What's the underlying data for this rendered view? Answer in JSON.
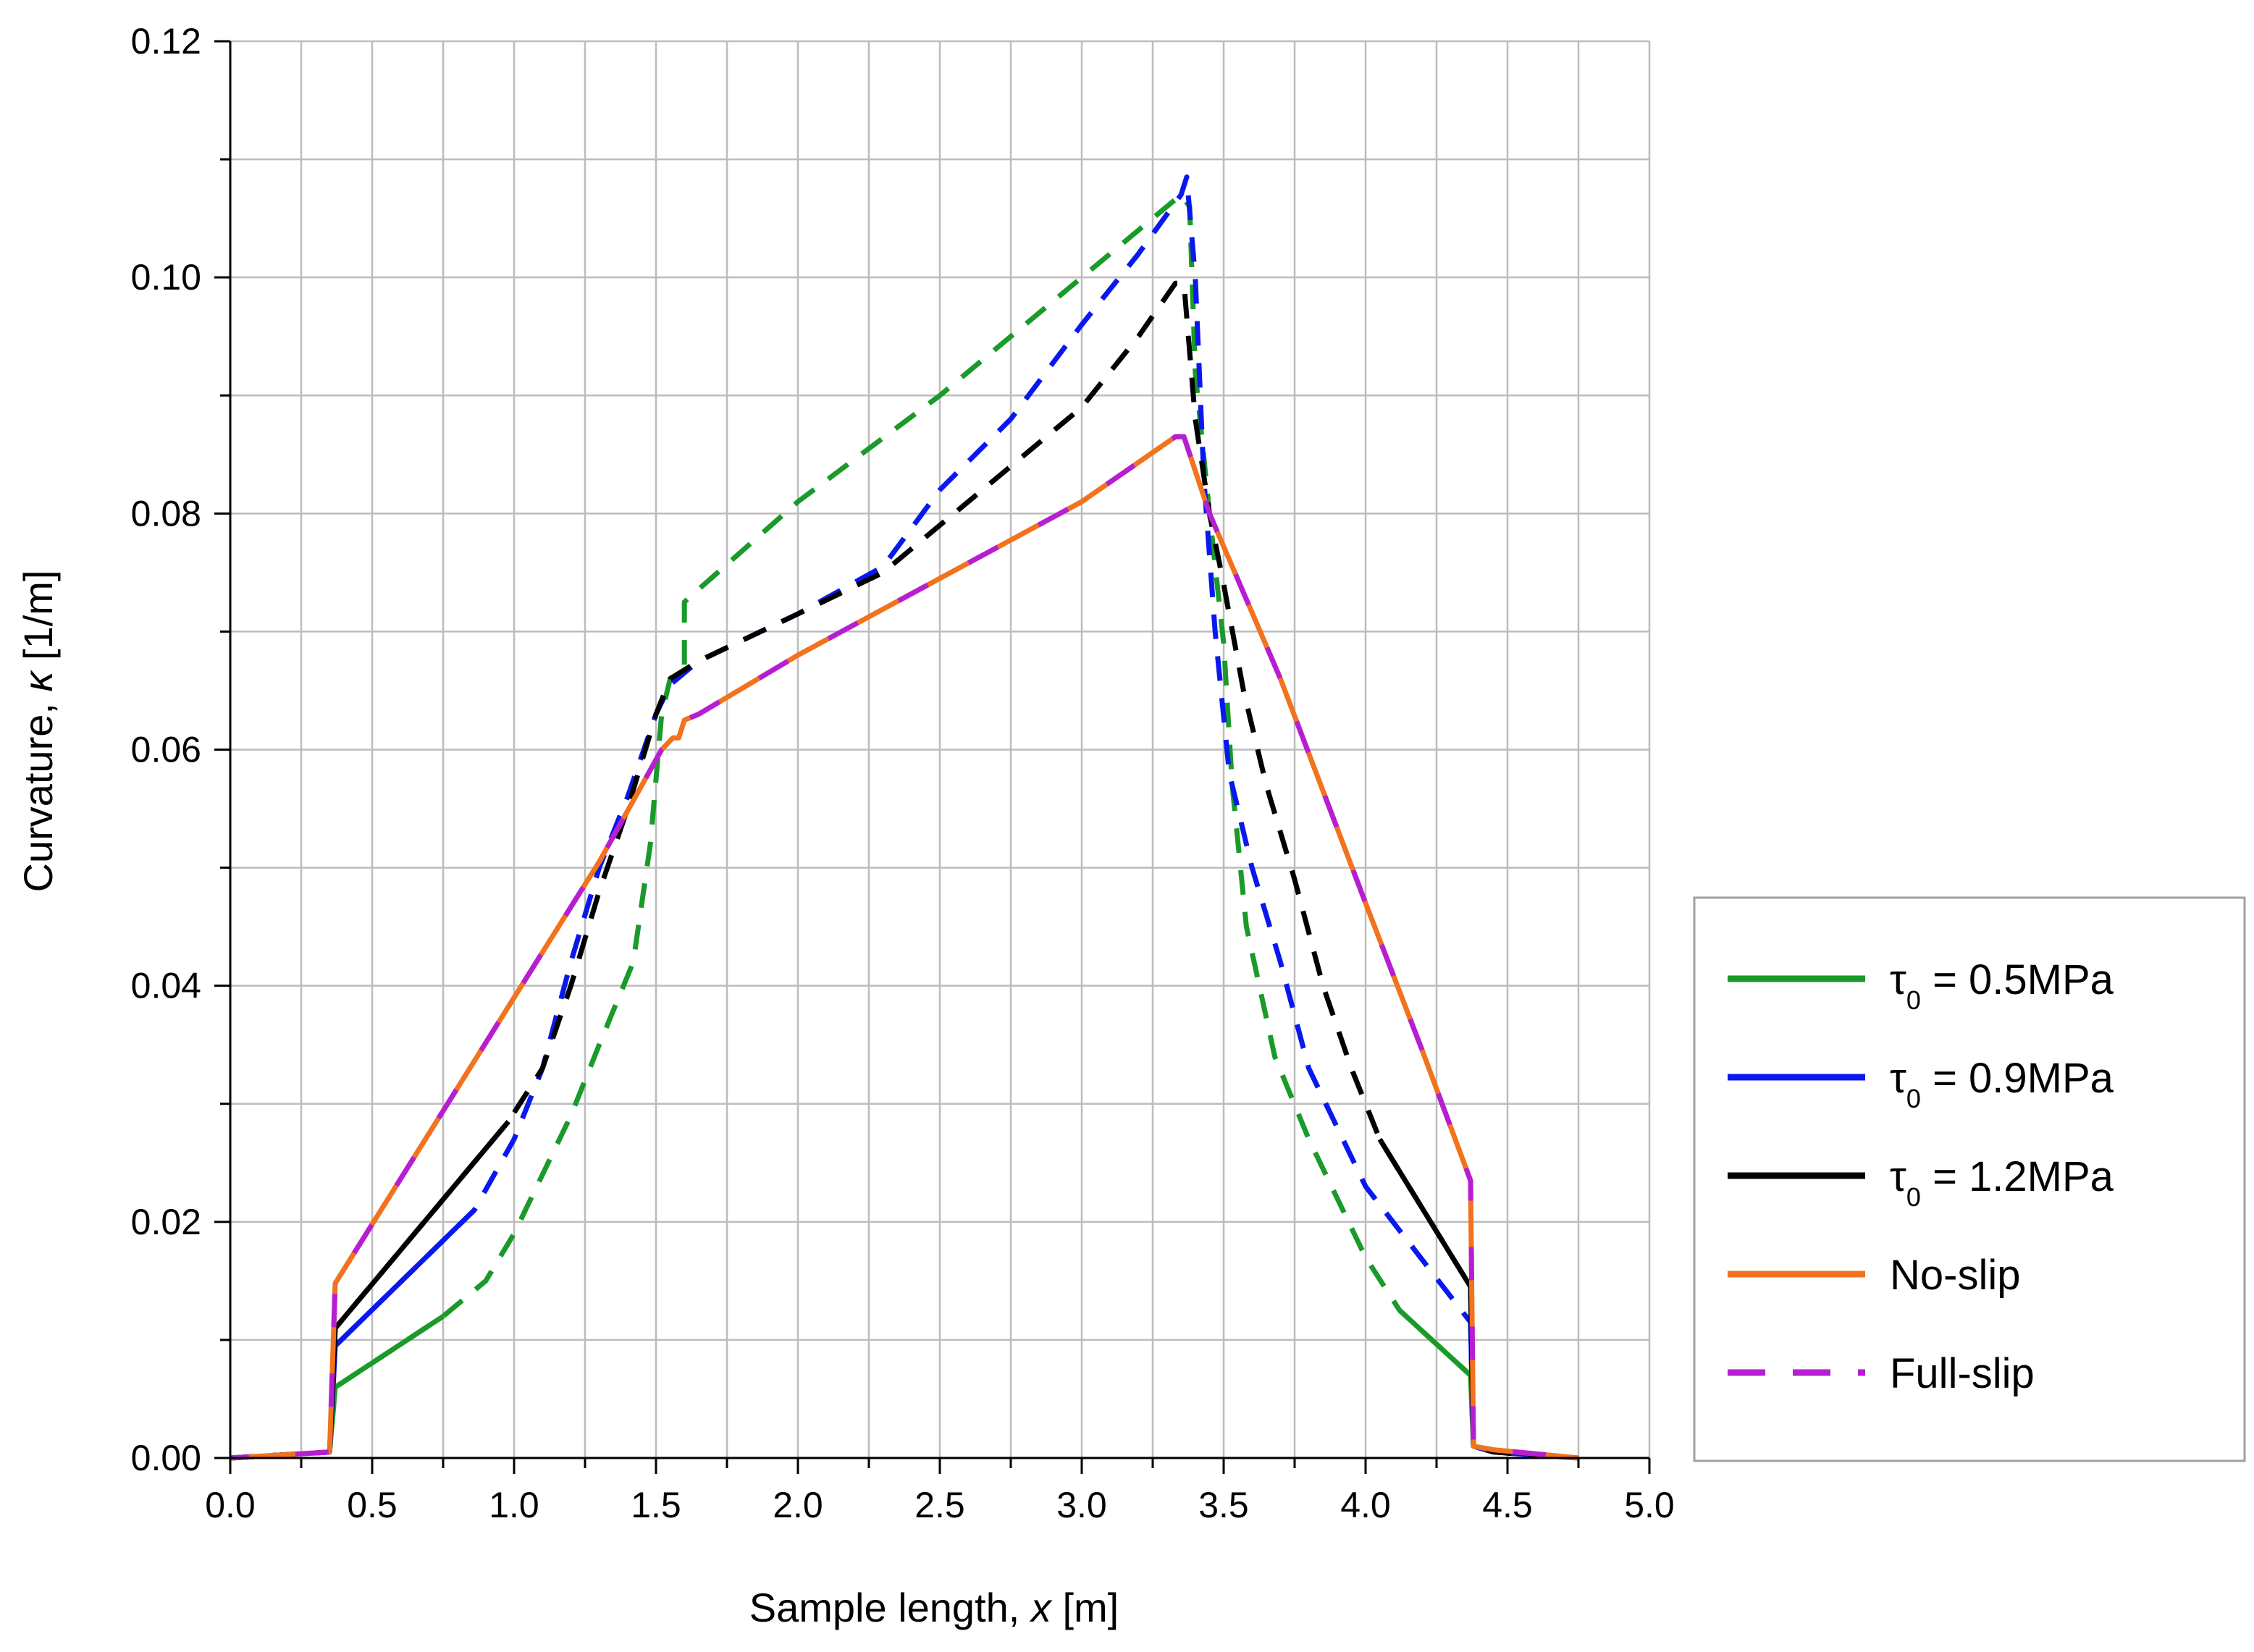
{
  "chart_data": {
    "type": "line",
    "xlabel_prefix": "Sample length, ",
    "xlabel_symbol": "x",
    "xlabel_suffix": " [m]",
    "ylabel_prefix": "Curvature, ",
    "ylabel_symbol": "κ",
    "ylabel_suffix": " [1/m]",
    "xlim": [
      0,
      5
    ],
    "ylim": [
      0,
      0.12
    ],
    "x_ticks": [
      "0.0",
      "0.5",
      "1.0",
      "1.5",
      "2.0",
      "2.5",
      "3.0",
      "3.5",
      "4.0",
      "4.5",
      "5.0"
    ],
    "y_ticks": [
      "0.00",
      "0.02",
      "0.04",
      "0.06",
      "0.08",
      "0.10",
      "0.12"
    ],
    "grid": true,
    "legend_position": "right",
    "legend": [
      {
        "label_main": "τ",
        "label_sub": "0",
        "label_rest": " = 0.5MPa",
        "color": "#1a9a2a",
        "style": "solid"
      },
      {
        "label_main": "τ",
        "label_sub": "0",
        "label_rest": " = 0.9MPa",
        "color": "#0a18f0",
        "style": "solid"
      },
      {
        "label_main": "τ",
        "label_sub": "0",
        "label_rest": " = 1.2MPa",
        "color": "#000000",
        "style": "solid"
      },
      {
        "label_main": "No-slip",
        "label_sub": "",
        "label_rest": "",
        "color": "#f2721d",
        "style": "solid"
      },
      {
        "label_main": "Full-slip",
        "label_sub": "",
        "label_rest": "",
        "color": "#b61ed4",
        "style": "dashed"
      }
    ],
    "series": [
      {
        "name": "τ0 = 0.5MPa",
        "color": "#1a9a2a",
        "points": [
          [
            0,
            0
          ],
          [
            0.35,
            0.0005
          ],
          [
            0.37,
            0.006
          ],
          [
            0.75,
            0.012
          ],
          [
            0.9,
            0.015
          ],
          [
            1.0,
            0.019
          ],
          [
            1.1,
            0.024
          ],
          [
            1.2,
            0.029
          ],
          [
            1.3,
            0.035
          ],
          [
            1.42,
            0.042
          ],
          [
            1.48,
            0.052
          ],
          [
            1.52,
            0.063
          ],
          [
            1.55,
            0.066
          ],
          [
            1.6,
            0.067
          ],
          [
            1.6,
            0.0725
          ],
          [
            1.67,
            0.074
          ],
          [
            2.0,
            0.081
          ],
          [
            2.5,
            0.09
          ],
          [
            3.0,
            0.1
          ],
          [
            3.35,
            0.107
          ],
          [
            3.38,
            0.106
          ],
          [
            3.4,
            0.092
          ],
          [
            3.45,
            0.08
          ],
          [
            3.5,
            0.069
          ],
          [
            3.53,
            0.057
          ],
          [
            3.58,
            0.045
          ],
          [
            3.68,
            0.034
          ],
          [
            3.8,
            0.027
          ],
          [
            4.0,
            0.017
          ],
          [
            4.12,
            0.0125
          ],
          [
            4.37,
            0.007
          ],
          [
            4.38,
            0.001
          ],
          [
            4.45,
            0.0005
          ],
          [
            4.75,
            0
          ]
        ],
        "solid_ranges": [
          [
            0.35,
            0.75
          ],
          [
            4.12,
            4.38
          ]
        ]
      },
      {
        "name": "τ0 = 0.9MPa",
        "color": "#0a18f0",
        "points": [
          [
            0,
            0
          ],
          [
            0.35,
            0.0005
          ],
          [
            0.37,
            0.0095
          ],
          [
            0.86,
            0.021
          ],
          [
            1.0,
            0.027
          ],
          [
            1.1,
            0.033
          ],
          [
            1.2,
            0.042
          ],
          [
            1.3,
            0.05
          ],
          [
            1.4,
            0.056
          ],
          [
            1.5,
            0.063
          ],
          [
            1.55,
            0.0655
          ],
          [
            1.65,
            0.0675
          ],
          [
            2.0,
            0.0715
          ],
          [
            2.3,
            0.0755
          ],
          [
            2.5,
            0.082
          ],
          [
            2.75,
            0.088
          ],
          [
            3.0,
            0.096
          ],
          [
            3.2,
            0.102
          ],
          [
            3.35,
            0.107
          ],
          [
            3.37,
            0.1085
          ],
          [
            3.4,
            0.1
          ],
          [
            3.43,
            0.083
          ],
          [
            3.47,
            0.07
          ],
          [
            3.52,
            0.058
          ],
          [
            3.6,
            0.05
          ],
          [
            3.7,
            0.042
          ],
          [
            3.8,
            0.033
          ],
          [
            3.9,
            0.028
          ],
          [
            4.0,
            0.023
          ],
          [
            4.37,
            0.0115
          ],
          [
            4.38,
            0.001
          ],
          [
            4.45,
            0.0005
          ],
          [
            4.75,
            0
          ]
        ],
        "solid_ranges": [
          [
            0.35,
            0.86
          ],
          [
            4.05,
            4.38
          ]
        ]
      },
      {
        "name": "τ0 = 1.2MPa",
        "color": "#000000",
        "points": [
          [
            0,
            0
          ],
          [
            0.35,
            0.0005
          ],
          [
            0.37,
            0.011
          ],
          [
            0.98,
            0.0285
          ],
          [
            1.1,
            0.033
          ],
          [
            1.2,
            0.04
          ],
          [
            1.3,
            0.048
          ],
          [
            1.4,
            0.055
          ],
          [
            1.5,
            0.063
          ],
          [
            1.55,
            0.066
          ],
          [
            1.65,
            0.0675
          ],
          [
            2.0,
            0.0715
          ],
          [
            2.3,
            0.075
          ],
          [
            2.5,
            0.079
          ],
          [
            2.75,
            0.084
          ],
          [
            3.0,
            0.089
          ],
          [
            3.2,
            0.095
          ],
          [
            3.33,
            0.0995
          ],
          [
            3.36,
            0.0995
          ],
          [
            3.4,
            0.088
          ],
          [
            3.45,
            0.08
          ],
          [
            3.5,
            0.074
          ],
          [
            3.57,
            0.065
          ],
          [
            3.65,
            0.057
          ],
          [
            3.75,
            0.049
          ],
          [
            3.85,
            0.04
          ],
          [
            3.95,
            0.033
          ],
          [
            4.05,
            0.027
          ],
          [
            4.37,
            0.0145
          ],
          [
            4.38,
            0.001
          ],
          [
            4.45,
            0.0005
          ],
          [
            4.75,
            0
          ]
        ],
        "solid_ranges": [
          [
            0.35,
            0.98
          ],
          [
            4.05,
            4.38
          ]
        ]
      },
      {
        "name": "No-slip",
        "color": "#f2721d",
        "points": [
          [
            0,
            0
          ],
          [
            0.35,
            0.0005
          ],
          [
            0.37,
            0.0148
          ],
          [
            1.0,
            0.039
          ],
          [
            1.3,
            0.0505
          ],
          [
            1.52,
            0.06
          ],
          [
            1.56,
            0.061
          ],
          [
            1.58,
            0.061
          ],
          [
            1.6,
            0.0625
          ],
          [
            1.65,
            0.063
          ],
          [
            2.0,
            0.068
          ],
          [
            2.5,
            0.0745
          ],
          [
            3.0,
            0.081
          ],
          [
            3.33,
            0.0865
          ],
          [
            3.36,
            0.0865
          ],
          [
            3.45,
            0.08
          ],
          [
            3.7,
            0.066
          ],
          [
            4.0,
            0.047
          ],
          [
            4.2,
            0.0345
          ],
          [
            4.37,
            0.0235
          ],
          [
            4.38,
            0.001
          ],
          [
            4.45,
            0.0007
          ],
          [
            4.75,
            0
          ]
        ]
      },
      {
        "name": "Full-slip",
        "color": "#b61ed4",
        "points": [
          [
            0,
            0
          ],
          [
            0.35,
            0.0005
          ],
          [
            0.37,
            0.0148
          ],
          [
            1.0,
            0.039
          ],
          [
            1.3,
            0.0505
          ],
          [
            1.52,
            0.06
          ],
          [
            1.56,
            0.061
          ],
          [
            1.58,
            0.061
          ],
          [
            1.6,
            0.0625
          ],
          [
            1.65,
            0.063
          ],
          [
            2.0,
            0.068
          ],
          [
            2.5,
            0.0745
          ],
          [
            3.0,
            0.081
          ],
          [
            3.33,
            0.0865
          ],
          [
            3.36,
            0.0865
          ],
          [
            3.45,
            0.08
          ],
          [
            3.7,
            0.066
          ],
          [
            4.0,
            0.047
          ],
          [
            4.2,
            0.0345
          ],
          [
            4.37,
            0.0235
          ],
          [
            4.38,
            0.001
          ],
          [
            4.45,
            0.0007
          ],
          [
            4.75,
            0
          ]
        ]
      }
    ]
  }
}
